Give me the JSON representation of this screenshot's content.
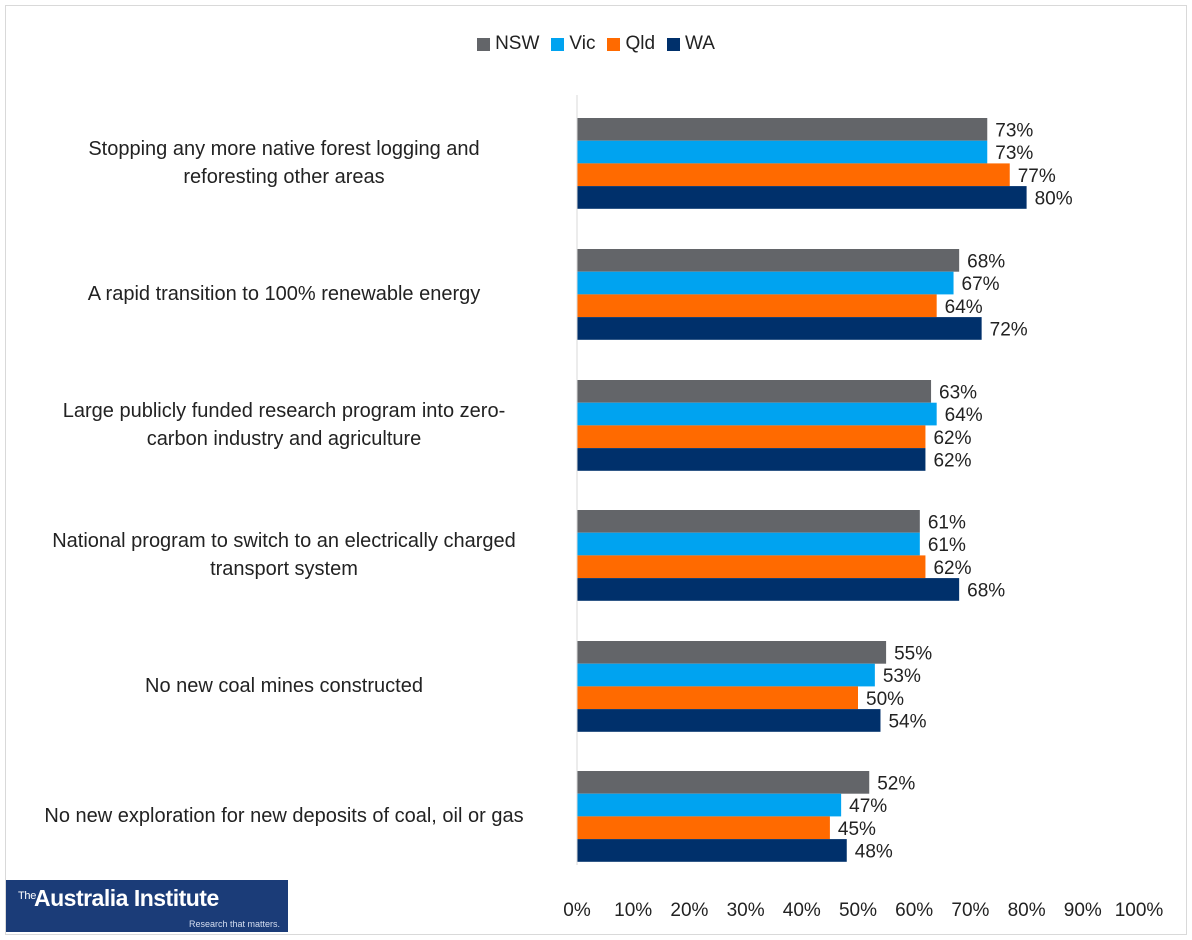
{
  "chart_data": {
    "type": "bar",
    "orientation": "horizontal",
    "categories": [
      [
        "Stopping any more native forest logging and",
        "reforesting other areas"
      ],
      [
        "A rapid transition to 100% renewable energy"
      ],
      [
        "Large publicly funded research program into zero-",
        "carbon industry and agriculture"
      ],
      [
        "National program to switch to an electrically charged",
        "transport system"
      ],
      [
        "No new coal mines constructed"
      ],
      [
        "No new exploration for new deposits of coal, oil or gas"
      ]
    ],
    "series": [
      {
        "name": "NSW",
        "color": "#636569",
        "values": [
          73,
          68,
          63,
          61,
          55,
          52
        ]
      },
      {
        "name": "Vic",
        "color": "#00a3f0",
        "values": [
          73,
          67,
          64,
          61,
          53,
          47
        ]
      },
      {
        "name": "Qld",
        "color": "#ff6a00",
        "values": [
          77,
          64,
          62,
          62,
          50,
          45
        ]
      },
      {
        "name": "WA",
        "color": "#00306b",
        "values": [
          80,
          72,
          62,
          68,
          54,
          48
        ]
      }
    ],
    "value_suffix": "%",
    "xlim": [
      0,
      100
    ],
    "xticks": [
      "0%",
      "10%",
      "20%",
      "30%",
      "40%",
      "50%",
      "60%",
      "70%",
      "80%",
      "90%",
      "100%"
    ],
    "legend_position": "top",
    "grid": false,
    "title": "",
    "xlabel": "",
    "ylabel": ""
  },
  "logo": {
    "prefix": "The",
    "name": "Australia Institute",
    "tagline": "Research that matters."
  }
}
